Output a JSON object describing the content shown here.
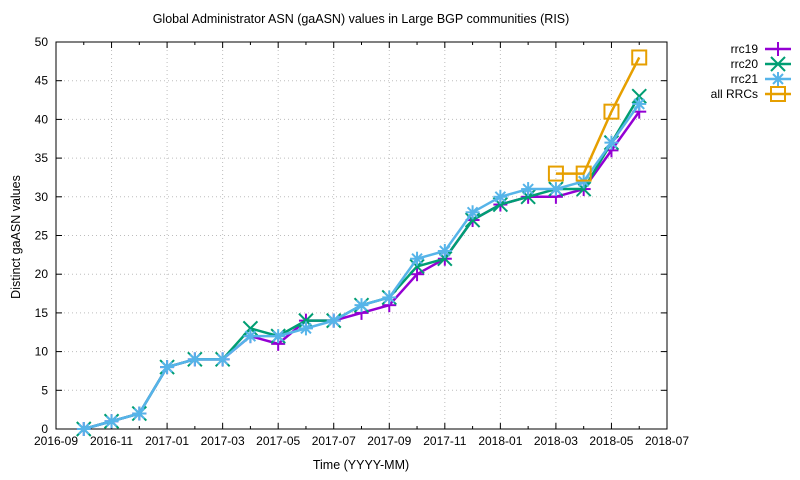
{
  "chart_data": {
    "type": "line",
    "title": "Global Administrator ASN (gaASN) values in Large BGP communities (RIS)",
    "xlabel": "Time (YYYY-MM)",
    "ylabel": "Distinct gaASN values",
    "xlim": [
      "2016-09",
      "2018-07"
    ],
    "ylim": [
      0,
      50
    ],
    "grid": true,
    "legend_position": "top-right-outside",
    "x_ticks": [
      "2016-09",
      "2016-11",
      "2017-01",
      "2017-03",
      "2017-05",
      "2017-07",
      "2017-09",
      "2017-11",
      "2018-01",
      "2018-03",
      "2018-05",
      "2018-07"
    ],
    "y_ticks": [
      0,
      5,
      10,
      15,
      20,
      25,
      30,
      35,
      40,
      45,
      50
    ],
    "series": [
      {
        "name": "rrc19",
        "color": "#9400d3",
        "marker": "plus",
        "x": [
          "2016-10",
          "2016-11",
          "2016-12",
          "2017-01",
          "2017-02",
          "2017-03",
          "2017-04",
          "2017-05",
          "2017-06",
          "2017-07",
          "2017-08",
          "2017-09",
          "2017-10",
          "2017-11",
          "2017-12",
          "2018-01",
          "2018-02",
          "2018-03",
          "2018-04",
          "2018-05",
          "2018-06"
        ],
        "values": [
          0,
          1,
          2,
          8,
          9,
          9,
          12,
          11,
          14,
          14,
          15,
          16,
          20,
          22,
          27,
          29,
          30,
          30,
          31,
          36,
          41
        ]
      },
      {
        "name": "rrc20",
        "color": "#009e73",
        "marker": "cross",
        "x": [
          "2016-10",
          "2016-11",
          "2016-12",
          "2017-01",
          "2017-02",
          "2017-03",
          "2017-04",
          "2017-05",
          "2017-06",
          "2017-07",
          "2017-08",
          "2017-09",
          "2017-10",
          "2017-11",
          "2017-12",
          "2018-01",
          "2018-02",
          "2018-03",
          "2018-04",
          "2018-05",
          "2018-06"
        ],
        "values": [
          0,
          1,
          2,
          8,
          9,
          9,
          13,
          12,
          14,
          14,
          16,
          17,
          21,
          22,
          27,
          29,
          30,
          31,
          31,
          37,
          43
        ]
      },
      {
        "name": "rrc21",
        "color": "#56b4e9",
        "marker": "asterisk",
        "x": [
          "2016-10",
          "2016-11",
          "2016-12",
          "2017-01",
          "2017-02",
          "2017-03",
          "2017-04",
          "2017-05",
          "2017-06",
          "2017-07",
          "2017-08",
          "2017-09",
          "2017-10",
          "2017-11",
          "2017-12",
          "2018-01",
          "2018-02",
          "2018-03",
          "2018-04",
          "2018-05",
          "2018-06"
        ],
        "values": [
          0,
          1,
          2,
          8,
          9,
          9,
          12,
          12,
          13,
          14,
          16,
          17,
          22,
          23,
          28,
          30,
          31,
          31,
          32,
          37,
          42
        ]
      },
      {
        "name": "all RRCs",
        "color": "#e69f00",
        "marker": "square",
        "x": [
          "2018-03",
          "2018-04",
          "2018-05",
          "2018-06"
        ],
        "values": [
          33,
          33,
          41,
          48
        ]
      }
    ]
  }
}
